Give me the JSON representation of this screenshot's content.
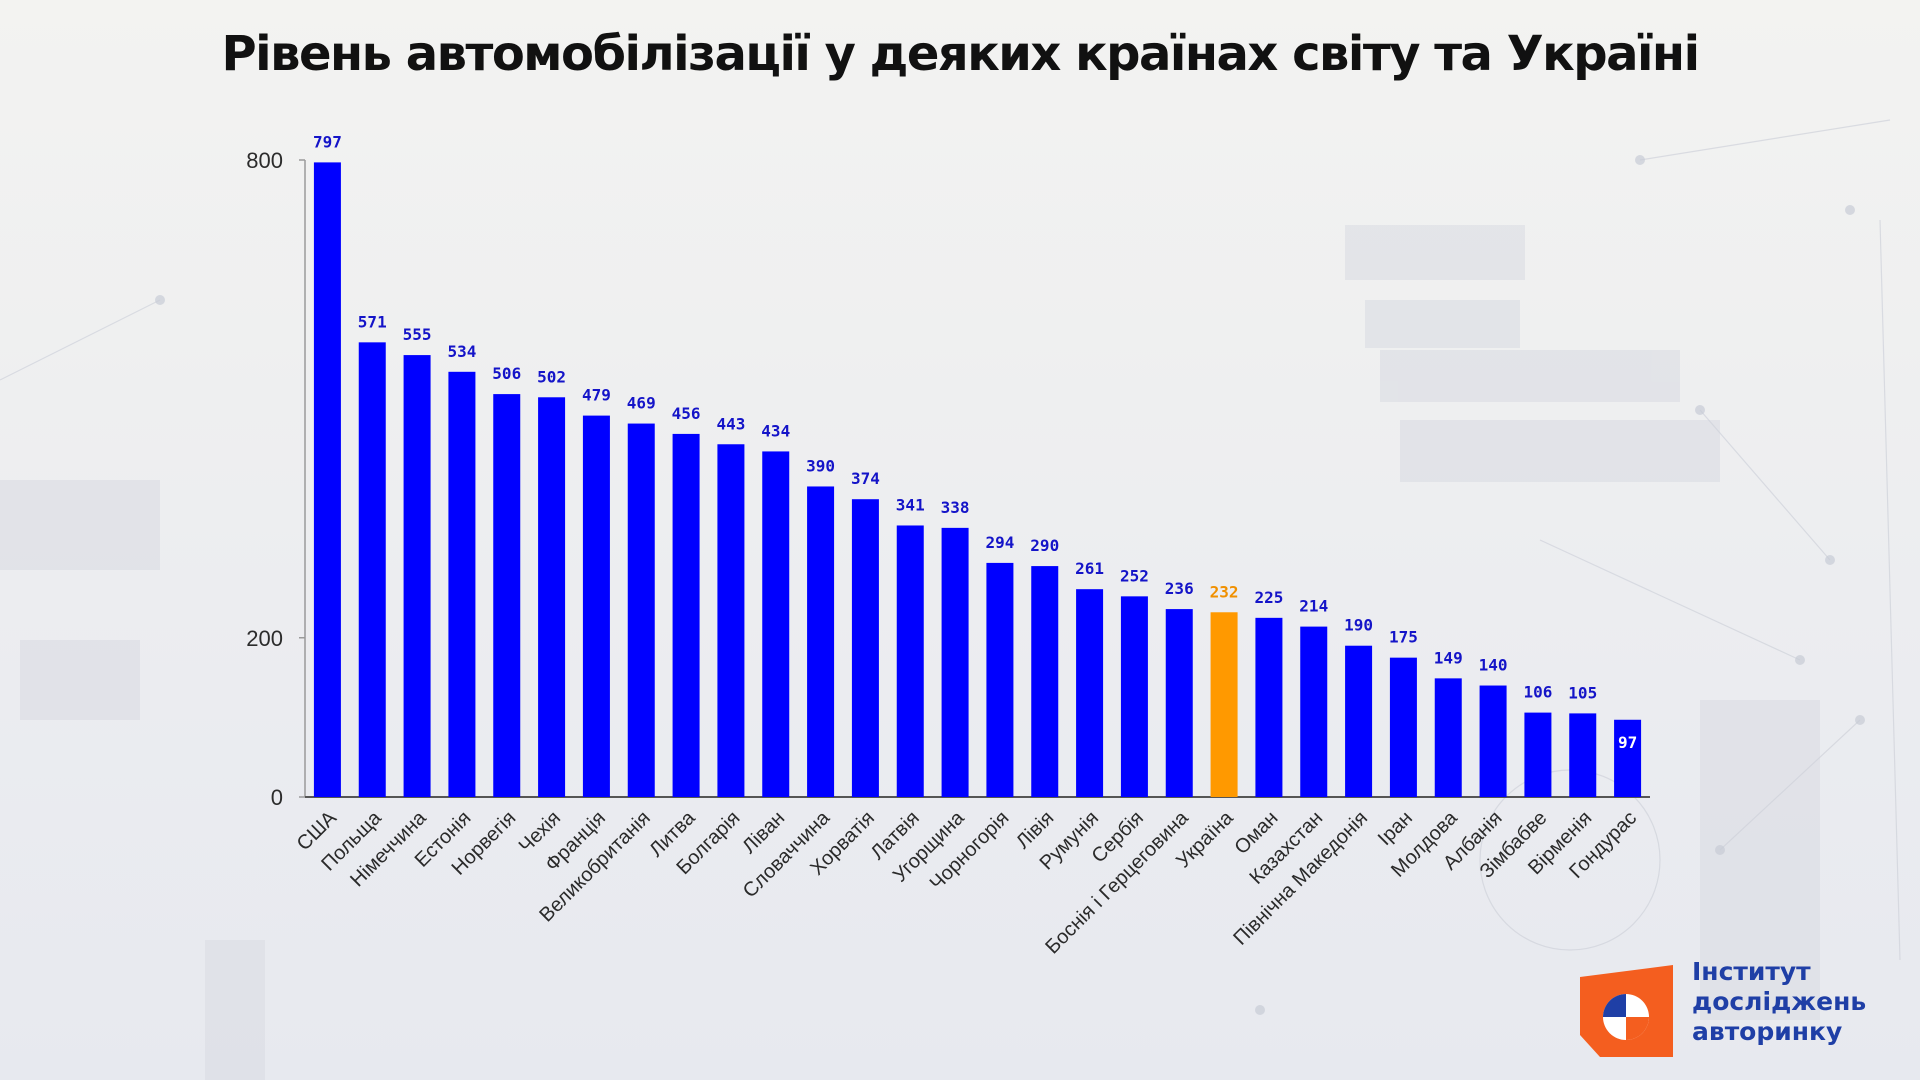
{
  "page": {
    "title": "Рівень автомобілізації у деяких країнах світу та Україні"
  },
  "logo": {
    "line1": "Інститут",
    "line2": "досліджень",
    "line3": "авторинку"
  },
  "colors": {
    "bar": "#0000ff",
    "highlight": "#ff9900",
    "label": "#1414c8",
    "highlight_label": "#f09000"
  },
  "chart_data": {
    "type": "bar",
    "title": "Рівень автомобілізації у деяких країнах світу та Україні",
    "xlabel": "",
    "ylabel": "",
    "ylim": [
      0,
      800
    ],
    "yticks": [
      0,
      200,
      800
    ],
    "grid": false,
    "highlight_category": "Україна",
    "categories": [
      "США",
      "Польща",
      "Німеччина",
      "Естонія",
      "Норвегія",
      "Чехія",
      "Франція",
      "Великобританія",
      "Литва",
      "Болгарія",
      "Ліван",
      "Словаччина",
      "Хорватія",
      "Латвія",
      "Угорщина",
      "Чорногорія",
      "Лівія",
      "Румунія",
      "Сербія",
      "Боснія і Герцеговина",
      "Україна",
      "Оман",
      "Казахстан",
      "Північна Македонія",
      "Іран",
      "Молдова",
      "Албанія",
      "Зімбабве",
      "Вірменія",
      "Гондурас"
    ],
    "values": [
      797,
      571,
      555,
      534,
      506,
      502,
      479,
      469,
      456,
      443,
      434,
      390,
      374,
      341,
      338,
      294,
      290,
      261,
      252,
      236,
      232,
      225,
      214,
      190,
      175,
      149,
      140,
      106,
      105,
      97
    ]
  }
}
